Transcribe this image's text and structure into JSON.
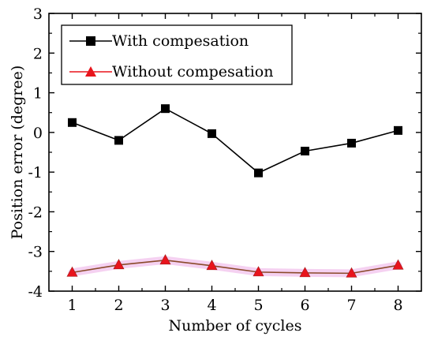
{
  "chart_data": {
    "type": "line",
    "xlabel": "Number of cycles",
    "ylabel": "Position error (degree)",
    "x": [
      1,
      2,
      3,
      4,
      5,
      6,
      7,
      8
    ],
    "xlim": [
      0.5,
      8.5
    ],
    "ylim": [
      -4,
      3
    ],
    "xticks": [
      "1",
      "2",
      "3",
      "4",
      "5",
      "6",
      "7",
      "8"
    ],
    "yticks": [
      "3",
      "2",
      "1",
      "0",
      "-1",
      "-2",
      "-3",
      "-4"
    ],
    "grid": false,
    "legend_position": "top-left",
    "series": [
      {
        "name": "With compesation",
        "color": "#000000",
        "marker": "square",
        "values": [
          0.25,
          -0.2,
          0.6,
          -0.03,
          -1.02,
          -0.47,
          -0.27,
          0.05
        ]
      },
      {
        "name": "Without compesation",
        "color": "#e8141c",
        "marker": "triangle",
        "values": [
          -3.53,
          -3.34,
          -3.22,
          -3.36,
          -3.52,
          -3.54,
          -3.55,
          -3.35
        ]
      }
    ]
  }
}
